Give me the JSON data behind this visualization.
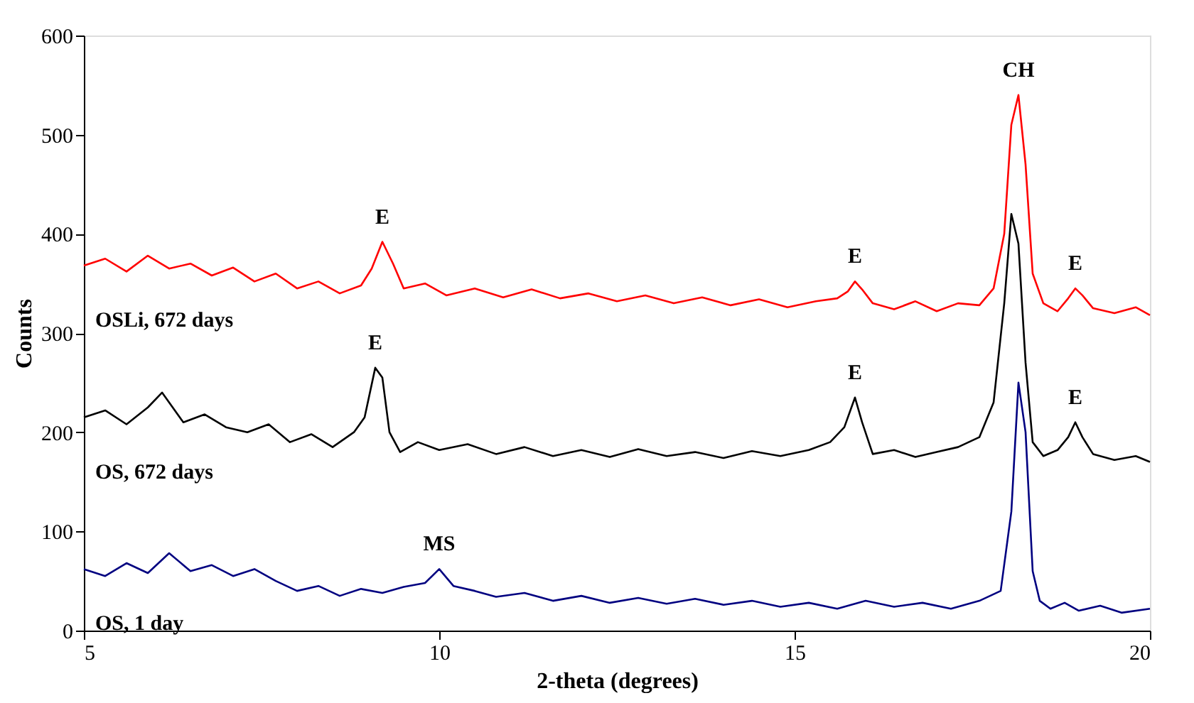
{
  "chart_data": {
    "type": "line",
    "xlabel": "2-theta (degrees)",
    "ylabel": "Counts",
    "xlim": [
      5,
      20
    ],
    "xticks": [
      5,
      10,
      15,
      20
    ],
    "ylim": [
      0,
      600
    ],
    "yticks": [
      0,
      100,
      200,
      300,
      400,
      500,
      600
    ],
    "grid": false,
    "legend": false,
    "marker": "none",
    "line_style": "solid",
    "series": [
      {
        "name": "OSLi, 672 days",
        "color": "#ff0000",
        "x": [
          5,
          5.3,
          5.6,
          5.9,
          6.2,
          6.5,
          6.8,
          7.1,
          7.4,
          7.7,
          8.0,
          8.3,
          8.6,
          8.9,
          9.05,
          9.2,
          9.35,
          9.5,
          9.8,
          10.1,
          10.5,
          10.9,
          11.3,
          11.7,
          12.1,
          12.5,
          12.9,
          13.3,
          13.7,
          14.1,
          14.5,
          14.9,
          15.3,
          15.6,
          15.75,
          15.85,
          15.95,
          16.1,
          16.4,
          16.7,
          17.0,
          17.3,
          17.6,
          17.8,
          17.95,
          18.05,
          18.15,
          18.25,
          18.35,
          18.5,
          18.7,
          18.85,
          18.95,
          19.05,
          19.2,
          19.5,
          19.8,
          20
        ],
        "values": [
          368,
          375,
          362,
          378,
          365,
          370,
          358,
          366,
          352,
          360,
          345,
          352,
          340,
          348,
          365,
          392,
          370,
          345,
          350,
          338,
          345,
          336,
          344,
          335,
          340,
          332,
          338,
          330,
          336,
          328,
          334,
          326,
          332,
          335,
          342,
          352,
          344,
          330,
          324,
          332,
          322,
          330,
          328,
          345,
          400,
          510,
          540,
          470,
          360,
          330,
          322,
          335,
          345,
          338,
          325,
          320,
          326,
          318
        ]
      },
      {
        "name": "OS, 672 days",
        "color": "#000000",
        "x": [
          5,
          5.3,
          5.6,
          5.9,
          6.1,
          6.4,
          6.7,
          7.0,
          7.3,
          7.6,
          7.9,
          8.2,
          8.5,
          8.8,
          8.95,
          9.1,
          9.2,
          9.3,
          9.45,
          9.7,
          10.0,
          10.4,
          10.8,
          11.2,
          11.6,
          12.0,
          12.4,
          12.8,
          13.2,
          13.6,
          14.0,
          14.4,
          14.8,
          15.2,
          15.5,
          15.7,
          15.85,
          15.95,
          16.1,
          16.4,
          16.7,
          17.0,
          17.3,
          17.6,
          17.8,
          17.95,
          18.05,
          18.15,
          18.25,
          18.35,
          18.5,
          18.7,
          18.85,
          18.95,
          19.05,
          19.2,
          19.5,
          19.8,
          20
        ],
        "values": [
          215,
          222,
          208,
          225,
          240,
          210,
          218,
          205,
          200,
          208,
          190,
          198,
          185,
          200,
          215,
          265,
          255,
          200,
          180,
          190,
          182,
          188,
          178,
          185,
          176,
          182,
          175,
          183,
          176,
          180,
          174,
          181,
          176,
          182,
          190,
          205,
          235,
          210,
          178,
          182,
          175,
          180,
          185,
          195,
          230,
          330,
          420,
          390,
          270,
          190,
          176,
          182,
          195,
          210,
          195,
          178,
          172,
          176,
          170
        ]
      },
      {
        "name": "OS, 1 day",
        "color": "#000080",
        "x": [
          5,
          5.3,
          5.6,
          5.9,
          6.2,
          6.5,
          6.8,
          7.1,
          7.4,
          7.7,
          8.0,
          8.3,
          8.6,
          8.9,
          9.2,
          9.5,
          9.8,
          10.0,
          10.2,
          10.5,
          10.8,
          11.2,
          11.6,
          12.0,
          12.4,
          12.8,
          13.2,
          13.6,
          14.0,
          14.4,
          14.8,
          15.2,
          15.6,
          16.0,
          16.4,
          16.8,
          17.2,
          17.6,
          17.9,
          18.05,
          18.15,
          18.25,
          18.35,
          18.45,
          18.6,
          18.8,
          19.0,
          19.3,
          19.6,
          20
        ],
        "values": [
          62,
          55,
          68,
          58,
          78,
          60,
          66,
          55,
          62,
          50,
          40,
          45,
          35,
          42,
          38,
          44,
          48,
          62,
          45,
          40,
          34,
          38,
          30,
          35,
          28,
          33,
          27,
          32,
          26,
          30,
          24,
          28,
          22,
          30,
          24,
          28,
          22,
          30,
          40,
          120,
          250,
          200,
          60,
          30,
          22,
          28,
          20,
          25,
          18,
          22
        ]
      }
    ],
    "annotations": [
      {
        "text": "E",
        "x": 9.2,
        "y": 392
      },
      {
        "text": "E",
        "x": 15.85,
        "y": 352
      },
      {
        "text": "CH",
        "x": 18.15,
        "y": 540
      },
      {
        "text": "E",
        "x": 18.95,
        "y": 345
      },
      {
        "text": "E",
        "x": 9.1,
        "y": 265
      },
      {
        "text": "E",
        "x": 15.85,
        "y": 235
      },
      {
        "text": "E",
        "x": 18.95,
        "y": 210
      },
      {
        "text": "MS",
        "x": 10.0,
        "y": 62
      }
    ]
  }
}
